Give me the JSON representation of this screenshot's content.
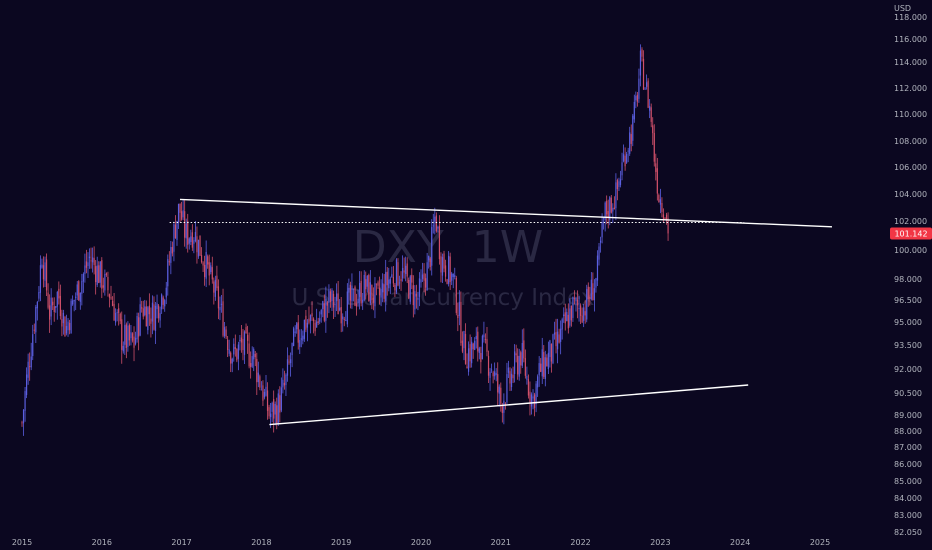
{
  "chart_data": {
    "type": "candlestick",
    "symbol": "DXY",
    "interval": "1W",
    "description": "U.S. Dollar Currency Index",
    "currency": "USD",
    "last_price": 101.142,
    "last_price_display": "101.142",
    "colors": {
      "background": "#0b0720",
      "up": "#5b5fe0",
      "down": "#d0506a",
      "trendline": "#ffffff",
      "last_price": "#f23645",
      "axis_text": "#b2b5be"
    },
    "grid": false,
    "x_range": [
      2014.98,
      2025.4
    ],
    "y_range": [
      81.8,
      118.2
    ],
    "y_ticks": [
      "82.050",
      "83.000",
      "84.000",
      "85.000",
      "86.000",
      "87.000",
      "88.000",
      "89.000",
      "90.500",
      "92.000",
      "93.500",
      "95.000",
      "96.500",
      "98.000",
      "100.000",
      "102.000",
      "104.000",
      "106.000",
      "108.000",
      "110.000",
      "112.000",
      "114.000",
      "116.000",
      "118.000"
    ],
    "x_ticks": [
      "2015",
      "2016",
      "2017",
      "2018",
      "2019",
      "2020",
      "2021",
      "2022",
      "2023",
      "2024",
      "2025"
    ],
    "weekly_close_anchors": [
      [
        2015.0,
        88.5
      ],
      [
        2015.05,
        91.0
      ],
      [
        2015.2,
        97.0
      ],
      [
        2015.25,
        99.8
      ],
      [
        2015.35,
        95.5
      ],
      [
        2015.45,
        97.0
      ],
      [
        2015.55,
        94.5
      ],
      [
        2015.65,
        96.5
      ],
      [
        2015.85,
        99.5
      ],
      [
        2015.95,
        98.5
      ],
      [
        2016.1,
        97.0
      ],
      [
        2016.25,
        94.0
      ],
      [
        2016.4,
        93.5
      ],
      [
        2016.5,
        96.0
      ],
      [
        2016.65,
        95.5
      ],
      [
        2016.8,
        97.5
      ],
      [
        2016.88,
        100.5
      ],
      [
        2016.97,
        103.0
      ],
      [
        2017.05,
        101.0
      ],
      [
        2017.15,
        101.3
      ],
      [
        2017.3,
        99.0
      ],
      [
        2017.45,
        96.5
      ],
      [
        2017.6,
        93.5
      ],
      [
        2017.65,
        92.8
      ],
      [
        2017.75,
        93.5
      ],
      [
        2017.9,
        92.8
      ],
      [
        2018.05,
        90.0
      ],
      [
        2018.1,
        89.0
      ],
      [
        2018.2,
        89.5
      ],
      [
        2018.3,
        91.0
      ],
      [
        2018.4,
        93.5
      ],
      [
        2018.55,
        95.0
      ],
      [
        2018.7,
        95.0
      ],
      [
        2018.85,
        96.5
      ],
      [
        2019.0,
        96.0
      ],
      [
        2019.15,
        96.5
      ],
      [
        2019.3,
        97.5
      ],
      [
        2019.45,
        96.5
      ],
      [
        2019.6,
        98.0
      ],
      [
        2019.75,
        98.5
      ],
      [
        2019.95,
        96.5
      ],
      [
        2020.1,
        99.0
      ],
      [
        2020.18,
        102.5
      ],
      [
        2020.25,
        99.5
      ],
      [
        2020.4,
        98.0
      ],
      [
        2020.55,
        93.0
      ],
      [
        2020.75,
        93.5
      ],
      [
        2020.9,
        92.0
      ],
      [
        2021.0,
        89.8
      ],
      [
        2021.25,
        93.0
      ],
      [
        2021.4,
        90.0
      ],
      [
        2021.5,
        92.0
      ],
      [
        2021.7,
        93.5
      ],
      [
        2021.9,
        96.0
      ],
      [
        2022.05,
        96.0
      ],
      [
        2022.2,
        98.0
      ],
      [
        2022.3,
        102.5
      ],
      [
        2022.45,
        104.0
      ],
      [
        2022.55,
        107.0
      ],
      [
        2022.65,
        109.0
      ],
      [
        2022.72,
        112.0
      ],
      [
        2022.75,
        114.0
      ],
      [
        2022.82,
        112.0
      ],
      [
        2022.88,
        110.0
      ],
      [
        2022.92,
        107.0
      ],
      [
        2022.98,
        104.0
      ],
      [
        2023.05,
        103.0
      ],
      [
        2023.1,
        101.142
      ]
    ],
    "trendlines": [
      {
        "name": "upper",
        "x1": 2016.98,
        "y1": 103.6,
        "x2": 2025.15,
        "y2": 101.6,
        "style": "solid"
      },
      {
        "name": "lower",
        "x1": 2018.1,
        "y1": 88.4,
        "x2": 2024.1,
        "y2": 91.0,
        "style": "solid"
      },
      {
        "name": "horizontal",
        "x1": 2016.85,
        "y1": 101.9,
        "x2": 2024.05,
        "y2": 101.9,
        "style": "dotted"
      }
    ]
  }
}
